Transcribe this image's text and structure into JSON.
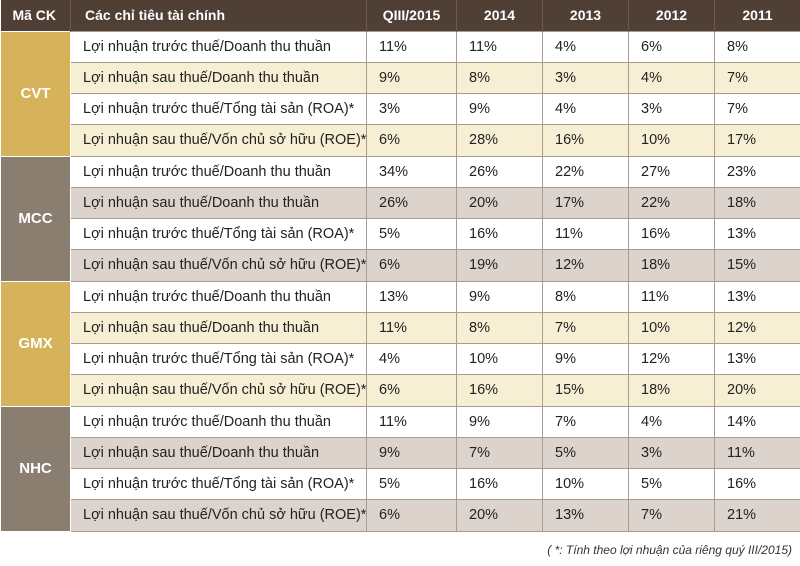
{
  "colors": {
    "header_bg": "#4f3f35",
    "group_code_bg": [
      "#d6b25a",
      "#8a7e70",
      "#d6b25a",
      "#8a7e70"
    ],
    "alt_row_bg": [
      "#f7efd3",
      "#dcd3cc",
      "#f7efd3",
      "#dcd3cc"
    ]
  },
  "table": {
    "headers": [
      "Mã CK",
      "Các chỉ tiêu tài chính",
      "QIII/2015",
      "2014",
      "2013",
      "2012",
      "2011"
    ],
    "groups": [
      {
        "code": "CVT",
        "rows": [
          {
            "label": "Lợi nhuận trước thuế/Doanh thu thuần",
            "values": [
              "11%",
              "11%",
              "4%",
              "6%",
              "8%"
            ]
          },
          {
            "label": "Lợi nhuận sau thuế/Doanh thu thuần",
            "values": [
              "9%",
              "8%",
              "3%",
              "4%",
              "7%"
            ]
          },
          {
            "label": "Lợi nhuận trước thuế/Tổng tài sản (ROA)*",
            "values": [
              "3%",
              "9%",
              "4%",
              "3%",
              "7%"
            ]
          },
          {
            "label": "Lợi nhuận sau thuế/Vốn chủ sở hữu (ROE)*",
            "values": [
              "6%",
              "28%",
              "16%",
              "10%",
              "17%"
            ]
          }
        ]
      },
      {
        "code": "MCC",
        "rows": [
          {
            "label": "Lợi nhuận trước thuế/Doanh thu thuần",
            "values": [
              "34%",
              "26%",
              "22%",
              "27%",
              "23%"
            ]
          },
          {
            "label": "Lợi nhuận sau thuế/Doanh thu thuần",
            "values": [
              "26%",
              "20%",
              "17%",
              "22%",
              "18%"
            ]
          },
          {
            "label": "Lợi nhuận trước thuế/Tổng tài sản (ROA)*",
            "values": [
              "5%",
              "16%",
              "11%",
              "16%",
              "13%"
            ]
          },
          {
            "label": "Lợi nhuận sau thuế/Vốn chủ sở hữu (ROE)*",
            "values": [
              "6%",
              "19%",
              "12%",
              "18%",
              "15%"
            ]
          }
        ]
      },
      {
        "code": "GMX",
        "rows": [
          {
            "label": "Lợi nhuận trước thuế/Doanh thu thuần",
            "values": [
              "13%",
              "9%",
              "8%",
              "11%",
              "13%"
            ]
          },
          {
            "label": "Lợi nhuận sau thuế/Doanh thu thuần",
            "values": [
              "11%",
              "8%",
              "7%",
              "10%",
              "12%"
            ]
          },
          {
            "label": "Lợi nhuận trước thuế/Tổng tài sản (ROA)*",
            "values": [
              "4%",
              "10%",
              "9%",
              "12%",
              "13%"
            ]
          },
          {
            "label": "Lợi nhuận sau thuế/Vốn chủ sở hữu (ROE)*",
            "values": [
              "6%",
              "16%",
              "15%",
              "18%",
              "20%"
            ]
          }
        ]
      },
      {
        "code": "NHC",
        "rows": [
          {
            "label": "Lợi nhuận trước thuế/Doanh thu thuần",
            "values": [
              "11%",
              "9%",
              "7%",
              "4%",
              "14%"
            ]
          },
          {
            "label": "Lợi nhuận sau thuế/Doanh thu thuần",
            "values": [
              "9%",
              "7%",
              "5%",
              "3%",
              "11%"
            ]
          },
          {
            "label": "Lợi nhuận trước thuế/Tổng tài sản (ROA)*",
            "values": [
              "5%",
              "16%",
              "10%",
              "5%",
              "16%"
            ]
          },
          {
            "label": "Lợi nhuận sau thuế/Vốn chủ sở hữu (ROE)*",
            "values": [
              "6%",
              "20%",
              "13%",
              "7%",
              "21%"
            ]
          }
        ]
      }
    ]
  },
  "footnote": "( *: Tính theo lợi nhuận của riêng quý III/2015)"
}
